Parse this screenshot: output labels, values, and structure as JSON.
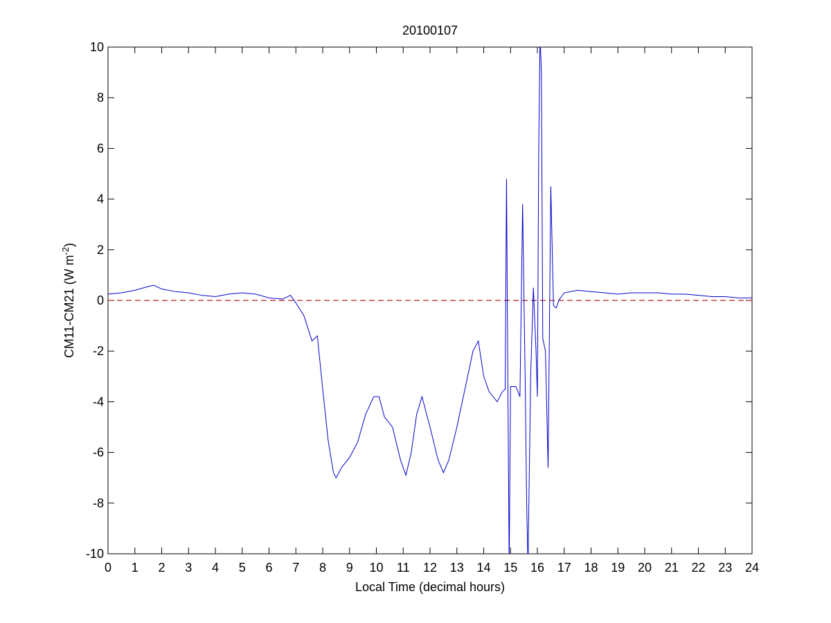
{
  "chart_data": {
    "type": "line",
    "title": "20100107",
    "xlabel": "Local Time (decimal hours)",
    "ylabel": "CM11-CM21 (W m",
    "ylabel_sup": "-2",
    "ylabel_end": ")",
    "x": [
      0,
      0.5,
      1,
      1.5,
      1.7,
      2,
      2.5,
      3,
      3.5,
      4,
      4.5,
      5,
      5.5,
      6,
      6.5,
      6.8,
      7,
      7.3,
      7.6,
      7.8,
      8,
      8.2,
      8.4,
      8.5,
      8.7,
      9,
      9.3,
      9.6,
      9.9,
      10.1,
      10.3,
      10.6,
      10.9,
      11.1,
      11.3,
      11.5,
      11.7,
      12,
      12.3,
      12.5,
      12.7,
      13,
      13.3,
      13.6,
      13.8,
      14,
      14.2,
      14.5,
      14.7,
      14.8,
      14.85,
      14.9,
      14.95,
      15,
      15.2,
      15.35,
      15.45,
      15.55,
      15.6,
      15.65,
      15.75,
      15.85,
      15.95,
      16,
      16.05,
      16.1,
      16.15,
      16.2,
      16.3,
      16.4,
      16.5,
      16.6,
      16.7,
      16.8,
      17,
      17.5,
      18,
      18.5,
      19,
      19.5,
      20,
      20.5,
      21,
      21.5,
      22,
      22.5,
      23,
      23.5,
      24
    ],
    "series": [
      {
        "name": "CM11-CM21",
        "color": "#0000cc",
        "values": [
          0.25,
          0.3,
          0.4,
          0.55,
          0.6,
          0.45,
          0.35,
          0.3,
          0.2,
          0.15,
          0.25,
          0.3,
          0.25,
          0.1,
          0.05,
          0.2,
          -0.1,
          -0.6,
          -1.6,
          -1.4,
          -3.5,
          -5.5,
          -6.8,
          -7,
          -6.6,
          -6.2,
          -5.6,
          -4.5,
          -3.8,
          -3.8,
          -4.6,
          -5,
          -6.3,
          -6.9,
          -6,
          -4.5,
          -3.8,
          -5,
          -6.3,
          -6.8,
          -6.3,
          -5,
          -3.5,
          -2,
          -1.6,
          -3,
          -3.6,
          -4,
          -3.6,
          -3.5,
          4.8,
          -3.3,
          -10.5,
          -3.4,
          -3.4,
          -3.8,
          3.8,
          -3.5,
          -8,
          -10.5,
          -3,
          0.5,
          -2,
          -3.8,
          6,
          10.5,
          9,
          -1.5,
          -2,
          -6.6,
          4.5,
          -0.2,
          -0.3,
          0,
          0.3,
          0.4,
          0.35,
          0.3,
          0.25,
          0.3,
          0.3,
          0.3,
          0.25,
          0.25,
          0.2,
          0.15,
          0.15,
          0.1,
          0.1
        ]
      }
    ],
    "hline": {
      "value": 0,
      "color": "#b22222"
    },
    "xlim": [
      0,
      24
    ],
    "xticks": [
      0,
      1,
      2,
      3,
      4,
      5,
      6,
      7,
      8,
      9,
      10,
      11,
      12,
      13,
      14,
      15,
      16,
      17,
      18,
      19,
      20,
      21,
      22,
      23,
      24
    ],
    "ylim": [
      -10,
      10
    ],
    "yticks": [
      -10,
      -8,
      -6,
      -4,
      -2,
      0,
      2,
      4,
      6,
      8,
      10
    ]
  }
}
